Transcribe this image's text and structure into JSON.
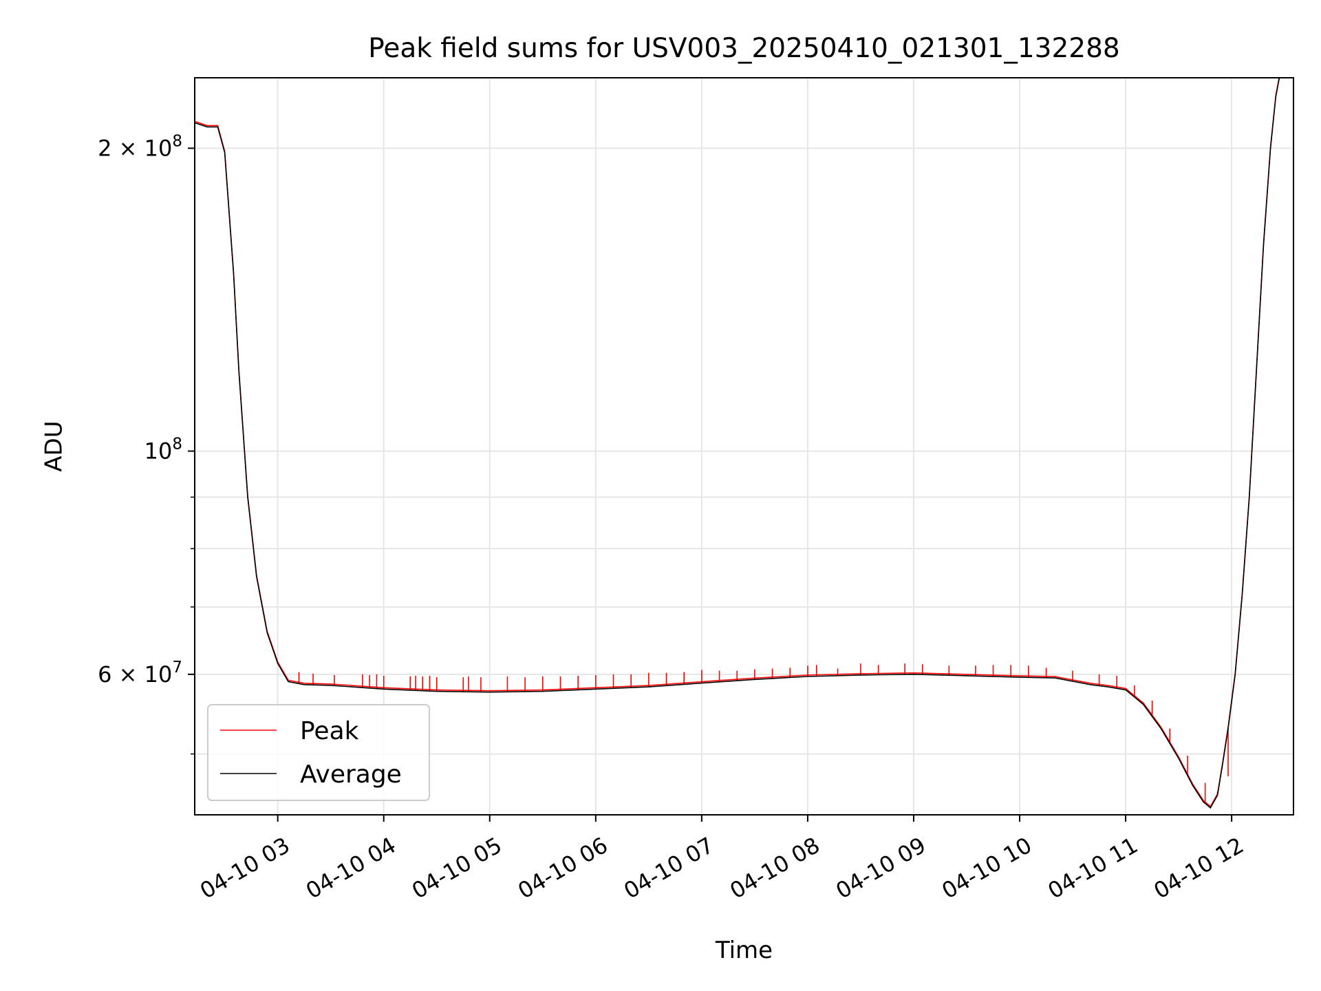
{
  "chart_data": {
    "type": "line",
    "title": "Peak field sums for USV003_20250410_021301_132288",
    "xlabel": "Time",
    "ylabel": "ADU",
    "y_scale": "log",
    "grid": true,
    "legend_position": "lower-left",
    "xlim": [
      "2025-04-10 02:13",
      "2025-04-10 12:35"
    ],
    "ylim": [
      43500000,
      235000000
    ],
    "x_ticks": [
      "04-10 03",
      "04-10 04",
      "04-10 05",
      "04-10 06",
      "04-10 07",
      "04-10 08",
      "04-10 09",
      "04-10 10",
      "04-10 11",
      "04-10 12"
    ],
    "x_tick_times": [
      "2025-04-10 03:00",
      "2025-04-10 04:00",
      "2025-04-10 05:00",
      "2025-04-10 06:00",
      "2025-04-10 07:00",
      "2025-04-10 08:00",
      "2025-04-10 09:00",
      "2025-04-10 10:00",
      "2025-04-10 11:00",
      "2025-04-10 12:00"
    ],
    "y_major_ticks": [
      {
        "value": 200000000,
        "mantissa": "2",
        "base": "10",
        "exp": "8"
      },
      {
        "value": 100000000,
        "mantissa": "",
        "base": "10",
        "exp": "8"
      },
      {
        "value": 60000000,
        "mantissa": "6",
        "base": "10",
        "exp": "7"
      }
    ],
    "y_minor_ticks": [
      50000000,
      70000000,
      80000000,
      90000000
    ],
    "series": [
      {
        "name": "Average",
        "color": "#000000",
        "x": [
          "2025-04-10 02:13",
          "2025-04-10 02:20",
          "2025-04-10 02:26",
          "2025-04-10 02:30",
          "2025-04-10 02:35",
          "2025-04-10 02:38",
          "2025-04-10 02:43",
          "2025-04-10 02:48",
          "2025-04-10 02:54",
          "2025-04-10 03:00",
          "2025-04-10 03:06",
          "2025-04-10 03:15",
          "2025-04-10 03:30",
          "2025-04-10 04:00",
          "2025-04-10 04:30",
          "2025-04-10 05:00",
          "2025-04-10 05:30",
          "2025-04-10 06:00",
          "2025-04-10 06:30",
          "2025-04-10 07:00",
          "2025-04-10 07:30",
          "2025-04-10 08:00",
          "2025-04-10 08:30",
          "2025-04-10 09:00",
          "2025-04-10 09:30",
          "2025-04-10 10:00",
          "2025-04-10 10:20",
          "2025-04-10 10:40",
          "2025-04-10 10:50",
          "2025-04-10 11:00",
          "2025-04-10 11:10",
          "2025-04-10 11:20",
          "2025-04-10 11:30",
          "2025-04-10 11:38",
          "2025-04-10 11:44",
          "2025-04-10 11:48",
          "2025-04-10 11:52",
          "2025-04-10 11:55",
          "2025-04-10 11:58",
          "2025-04-10 12:02",
          "2025-04-10 12:06",
          "2025-04-10 12:10",
          "2025-04-10 12:14",
          "2025-04-10 12:18",
          "2025-04-10 12:22",
          "2025-04-10 12:25",
          "2025-04-10 12:27"
        ],
        "values": [
          212000000,
          210000000,
          210000000,
          198000000,
          150000000,
          120000000,
          90000000,
          75000000,
          66000000,
          61500000,
          59000000,
          58600000,
          58500000,
          58000000,
          57700000,
          57600000,
          57700000,
          58000000,
          58300000,
          58800000,
          59300000,
          59700000,
          59900000,
          60000000,
          59800000,
          59600000,
          59500000,
          58600000,
          58300000,
          57900000,
          56000000,
          53000000,
          49500000,
          46500000,
          44800000,
          44200000,
          45500000,
          49000000,
          53000000,
          60000000,
          72000000,
          90000000,
          120000000,
          160000000,
          200000000,
          225000000,
          235000000
        ]
      },
      {
        "name": "Peak",
        "color": "#ff0000",
        "spike_times": [
          "2025-04-10 03:12",
          "2025-04-10 03:20",
          "2025-04-10 03:32",
          "2025-04-10 03:48",
          "2025-04-10 03:52",
          "2025-04-10 03:56",
          "2025-04-10 04:00",
          "2025-04-10 04:15",
          "2025-04-10 04:18",
          "2025-04-10 04:22",
          "2025-04-10 04:26",
          "2025-04-10 04:30",
          "2025-04-10 04:45",
          "2025-04-10 04:48",
          "2025-04-10 04:55",
          "2025-04-10 05:10",
          "2025-04-10 05:20",
          "2025-04-10 05:30",
          "2025-04-10 05:40",
          "2025-04-10 05:50",
          "2025-04-10 06:00",
          "2025-04-10 06:10",
          "2025-04-10 06:20",
          "2025-04-10 06:30",
          "2025-04-10 06:40",
          "2025-04-10 06:50",
          "2025-04-10 07:00",
          "2025-04-10 07:10",
          "2025-04-10 07:20",
          "2025-04-10 07:30",
          "2025-04-10 07:40",
          "2025-04-10 07:50",
          "2025-04-10 08:00",
          "2025-04-10 08:05",
          "2025-04-10 08:17",
          "2025-04-10 08:30",
          "2025-04-10 08:40",
          "2025-04-10 08:55",
          "2025-04-10 09:05",
          "2025-04-10 09:20",
          "2025-04-10 09:35",
          "2025-04-10 09:45",
          "2025-04-10 09:55",
          "2025-04-10 10:05",
          "2025-04-10 10:15",
          "2025-04-10 10:30",
          "2025-04-10 10:45",
          "2025-04-10 10:55",
          "2025-04-10 11:05",
          "2025-04-10 11:15",
          "2025-04-10 11:25",
          "2025-04-10 11:35",
          "2025-04-10 11:45",
          "2025-04-10 11:52",
          "2025-04-10 11:58"
        ],
        "spike_values": [
          60300000,
          60100000,
          59900000,
          60000000,
          59900000,
          60000000,
          59800000,
          59700000,
          59800000,
          59700000,
          59800000,
          59600000,
          59600000,
          59700000,
          59600000,
          59700000,
          59600000,
          59700000,
          59700000,
          59800000,
          59900000,
          60000000,
          60000000,
          60200000,
          60200000,
          60300000,
          60600000,
          60500000,
          60500000,
          60700000,
          60800000,
          60900000,
          61200000,
          61300000,
          60800000,
          61500000,
          61300000,
          61500000,
          61400000,
          61200000,
          61200000,
          61300000,
          61300000,
          61200000,
          60900000,
          60500000,
          60000000,
          59800000,
          58500000,
          56500000,
          53000000,
          49800000,
          46800000,
          45900000,
          47500000
        ]
      }
    ],
    "legend": [
      {
        "name": "Peak",
        "color": "#ff0000"
      },
      {
        "name": "Average",
        "color": "#000000"
      }
    ]
  }
}
